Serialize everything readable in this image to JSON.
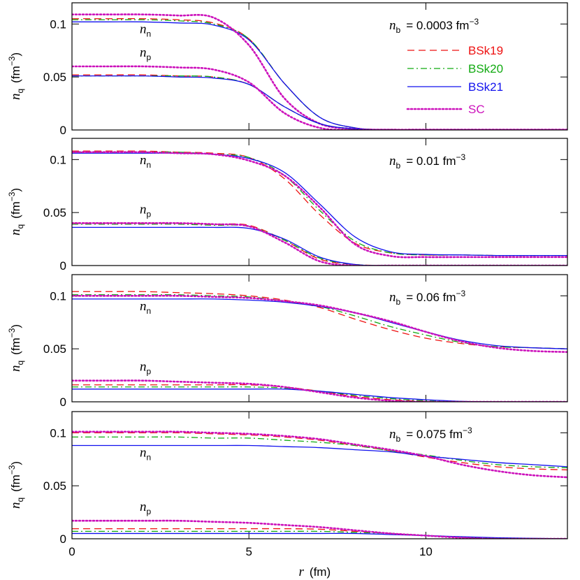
{
  "chart_data": [
    {
      "type": "line",
      "title": {
        "symbol": "n",
        "sub": "b",
        "text": "= 0.0003  fm",
        "sup": "−3"
      },
      "ylabel": {
        "symbol": "n",
        "sub": "q",
        "text": "(fm",
        "sup": "−3",
        "end": ")"
      },
      "xlim": [
        0,
        14
      ],
      "ylim": [
        0,
        0.12
      ],
      "yticks": [
        0,
        0.05,
        0.1
      ],
      "legend": "upper right",
      "x": [
        0,
        1,
        2,
        3,
        4,
        5,
        6,
        7,
        8,
        9,
        10,
        11,
        12,
        13,
        14
      ],
      "groups": [
        {
          "label": {
            "symbol": "n",
            "sub": "n"
          },
          "series": [
            {
              "name": "BSk19",
              "color": "#ee1111",
              "dash": "dashed",
              "values": [
                0.105,
                0.105,
                0.105,
                0.104,
                0.101,
                0.086,
                0.044,
                0.012,
                0.002,
                0.0004,
                0.0003,
                0.0003,
                0.0003,
                0.0003,
                0.0003
              ]
            },
            {
              "name": "BSk20",
              "color": "#11aa11",
              "dash": "dashdot",
              "values": [
                0.104,
                0.104,
                0.104,
                0.103,
                0.1,
                0.086,
                0.044,
                0.012,
                0.002,
                0.0004,
                0.0003,
                0.0003,
                0.0003,
                0.0003,
                0.0003
              ]
            },
            {
              "name": "BSk21",
              "color": "#1111ee",
              "dash": "solid",
              "values": [
                0.102,
                0.102,
                0.102,
                0.101,
                0.099,
                0.085,
                0.044,
                0.012,
                0.002,
                0.0004,
                0.0003,
                0.0003,
                0.0003,
                0.0003,
                0.0003
              ]
            },
            {
              "name": "SC",
              "color": "#cc11bb",
              "dash": "dotted",
              "values": [
                0.109,
                0.109,
                0.109,
                0.108,
                0.106,
                0.08,
                0.03,
                0.006,
                0.001,
                0.0003,
                0.0003,
                0.0003,
                0.0003,
                0.0003,
                0.0003
              ]
            }
          ]
        },
        {
          "label": {
            "symbol": "n",
            "sub": "p"
          },
          "series": [
            {
              "color": "#ee1111",
              "dash": "dashed",
              "values": [
                0.052,
                0.052,
                0.052,
                0.051,
                0.05,
                0.043,
                0.022,
                0.006,
                0.001,
                0,
                0,
                0,
                0,
                0,
                0
              ]
            },
            {
              "color": "#11aa11",
              "dash": "dashdot",
              "values": [
                0.051,
                0.051,
                0.051,
                0.051,
                0.05,
                0.043,
                0.022,
                0.006,
                0.001,
                0,
                0,
                0,
                0,
                0,
                0
              ]
            },
            {
              "color": "#1111ee",
              "dash": "solid",
              "values": [
                0.051,
                0.051,
                0.051,
                0.05,
                0.049,
                0.043,
                0.022,
                0.006,
                0.001,
                0,
                0,
                0,
                0,
                0,
                0
              ]
            },
            {
              "color": "#cc11bb",
              "dash": "dotted",
              "values": [
                0.06,
                0.06,
                0.06,
                0.059,
                0.057,
                0.045,
                0.016,
                0.002,
                0,
                0,
                0,
                0,
                0,
                0,
                0
              ]
            }
          ]
        }
      ]
    },
    {
      "type": "line",
      "title": {
        "symbol": "n",
        "sub": "b",
        "text": "= 0.01  fm",
        "sup": "−3"
      },
      "ylabel": {
        "symbol": "n",
        "sub": "q",
        "text": "(fm",
        "sup": "−3",
        "end": ")"
      },
      "xlim": [
        0,
        14
      ],
      "ylim": [
        0,
        0.12
      ],
      "yticks": [
        0,
        0.05,
        0.1
      ],
      "x": [
        0,
        1,
        2,
        3,
        4,
        5,
        6,
        7,
        8,
        9,
        10,
        11,
        12,
        13,
        14
      ],
      "groups": [
        {
          "label": {
            "symbol": "n",
            "sub": "n"
          },
          "series": [
            {
              "color": "#ee1111",
              "dash": "dashed",
              "values": [
                0.108,
                0.108,
                0.108,
                0.107,
                0.106,
                0.102,
                0.082,
                0.048,
                0.021,
                0.012,
                0.01,
                0.01,
                0.0095,
                0.0095,
                0.0095
              ]
            },
            {
              "color": "#11aa11",
              "dash": "dashdot",
              "values": [
                0.107,
                0.107,
                0.107,
                0.107,
                0.105,
                0.102,
                0.085,
                0.052,
                0.023,
                0.012,
                0.01,
                0.01,
                0.0095,
                0.0095,
                0.0095
              ]
            },
            {
              "color": "#1111ee",
              "dash": "solid",
              "values": [
                0.106,
                0.106,
                0.106,
                0.106,
                0.105,
                0.101,
                0.088,
                0.058,
                0.027,
                0.013,
                0.0105,
                0.01,
                0.0095,
                0.0095,
                0.0095
              ]
            },
            {
              "color": "#cc11bb",
              "dash": "dotted",
              "values": [
                0.107,
                0.107,
                0.107,
                0.106,
                0.105,
                0.099,
                0.085,
                0.055,
                0.02,
                0.009,
                0.008,
                0.008,
                0.008,
                0.008,
                0.008
              ]
            }
          ]
        },
        {
          "label": {
            "symbol": "n",
            "sub": "p"
          },
          "series": [
            {
              "color": "#ee1111",
              "dash": "dashed",
              "values": [
                0.04,
                0.04,
                0.04,
                0.04,
                0.039,
                0.038,
                0.024,
                0.006,
                0.001,
                0,
                0,
                0,
                0,
                0,
                0
              ]
            },
            {
              "color": "#11aa11",
              "dash": "dashdot",
              "values": [
                0.039,
                0.039,
                0.039,
                0.039,
                0.038,
                0.037,
                0.024,
                0.007,
                0.001,
                0,
                0,
                0,
                0,
                0,
                0
              ]
            },
            {
              "color": "#1111ee",
              "dash": "solid",
              "values": [
                0.036,
                0.036,
                0.036,
                0.036,
                0.036,
                0.035,
                0.025,
                0.008,
                0.001,
                0,
                0,
                0,
                0,
                0,
                0
              ]
            },
            {
              "color": "#cc11bb",
              "dash": "dotted",
              "values": [
                0.04,
                0.04,
                0.04,
                0.04,
                0.039,
                0.037,
                0.022,
                0.004,
                0,
                0,
                0,
                0,
                0,
                0,
                0
              ]
            }
          ]
        }
      ]
    },
    {
      "type": "line",
      "title": {
        "symbol": "n",
        "sub": "b",
        "text": "= 0.06  fm",
        "sup": "−3"
      },
      "ylabel": {
        "symbol": "n",
        "sub": "q",
        "text": "(fm",
        "sup": "−3",
        "end": ")"
      },
      "xlim": [
        0,
        14
      ],
      "ylim": [
        0,
        0.12
      ],
      "yticks": [
        0,
        0.05,
        0.1
      ],
      "x": [
        0,
        1,
        2,
        3,
        4,
        5,
        6,
        7,
        8,
        9,
        10,
        11,
        12,
        13,
        14
      ],
      "groups": [
        {
          "label": {
            "symbol": "n",
            "sub": "n"
          },
          "series": [
            {
              "color": "#ee1111",
              "dash": "dashed",
              "values": [
                0.104,
                0.104,
                0.104,
                0.103,
                0.102,
                0.1,
                0.096,
                0.089,
                0.078,
                0.068,
                0.06,
                0.055,
                0.052,
                0.051,
                0.05
              ]
            },
            {
              "color": "#11aa11",
              "dash": "dashdot",
              "values": [
                0.101,
                0.101,
                0.101,
                0.101,
                0.1,
                0.099,
                0.095,
                0.09,
                0.081,
                0.071,
                0.063,
                0.056,
                0.052,
                0.051,
                0.05
              ]
            },
            {
              "color": "#1111ee",
              "dash": "solid",
              "values": [
                0.097,
                0.097,
                0.097,
                0.097,
                0.097,
                0.096,
                0.094,
                0.09,
                0.084,
                0.075,
                0.066,
                0.058,
                0.053,
                0.051,
                0.05
              ]
            },
            {
              "color": "#cc11bb",
              "dash": "dotted",
              "values": [
                0.1,
                0.1,
                0.1,
                0.1,
                0.099,
                0.098,
                0.095,
                0.091,
                0.084,
                0.076,
                0.066,
                0.057,
                0.051,
                0.048,
                0.047
              ]
            }
          ]
        },
        {
          "label": {
            "symbol": "n",
            "sub": "p"
          },
          "series": [
            {
              "color": "#ee1111",
              "dash": "dashed",
              "values": [
                0.016,
                0.016,
                0.016,
                0.016,
                0.016,
                0.016,
                0.014,
                0.01,
                0.005,
                0.002,
                0.0005,
                0,
                0,
                0,
                0
              ]
            },
            {
              "color": "#11aa11",
              "dash": "dashdot",
              "values": [
                0.014,
                0.014,
                0.014,
                0.014,
                0.014,
                0.014,
                0.013,
                0.01,
                0.006,
                0.003,
                0.001,
                0,
                0,
                0,
                0
              ]
            },
            {
              "color": "#1111ee",
              "dash": "solid",
              "values": [
                0.012,
                0.012,
                0.012,
                0.012,
                0.012,
                0.012,
                0.012,
                0.01,
                0.007,
                0.004,
                0.002,
                0.0005,
                0,
                0,
                0
              ]
            },
            {
              "color": "#cc11bb",
              "dash": "dotted",
              "values": [
                0.02,
                0.02,
                0.02,
                0.019,
                0.018,
                0.017,
                0.014,
                0.009,
                0.004,
                0.001,
                0,
                0,
                0,
                0,
                0
              ]
            }
          ]
        }
      ]
    },
    {
      "type": "line",
      "title": {
        "symbol": "n",
        "sub": "b",
        "text": "= 0.075  fm",
        "sup": "−3"
      },
      "ylabel": {
        "symbol": "n",
        "sub": "q",
        "text": "(fm",
        "sup": "−3",
        "end": ")"
      },
      "xlabel": {
        "symbol": "r",
        "text": "(fm)"
      },
      "xlim": [
        0,
        14
      ],
      "xticks": [
        0,
        5,
        10
      ],
      "ylim": [
        0,
        0.12
      ],
      "yticks": [
        0,
        0.05,
        0.1
      ],
      "x": [
        0,
        1,
        2,
        3,
        4,
        5,
        6,
        7,
        8,
        9,
        10,
        11,
        12,
        13,
        14
      ],
      "groups": [
        {
          "label": {
            "symbol": "n",
            "sub": "n"
          },
          "series": [
            {
              "color": "#ee1111",
              "dash": "dashed",
              "values": [
                0.1,
                0.1,
                0.1,
                0.1,
                0.099,
                0.098,
                0.096,
                0.093,
                0.088,
                0.083,
                0.077,
                0.072,
                0.068,
                0.066,
                0.065
              ]
            },
            {
              "color": "#11aa11",
              "dash": "dashdot",
              "values": [
                0.096,
                0.096,
                0.096,
                0.096,
                0.095,
                0.095,
                0.093,
                0.091,
                0.088,
                0.083,
                0.079,
                0.074,
                0.07,
                0.068,
                0.067
              ]
            },
            {
              "color": "#1111ee",
              "dash": "solid",
              "values": [
                0.088,
                0.088,
                0.088,
                0.088,
                0.088,
                0.088,
                0.087,
                0.086,
                0.084,
                0.082,
                0.078,
                0.075,
                0.072,
                0.07,
                0.068
              ]
            },
            {
              "color": "#cc11bb",
              "dash": "dotted",
              "values": [
                0.101,
                0.101,
                0.101,
                0.101,
                0.1,
                0.099,
                0.097,
                0.094,
                0.089,
                0.084,
                0.078,
                0.07,
                0.064,
                0.06,
                0.058
              ]
            }
          ]
        },
        {
          "label": {
            "symbol": "n",
            "sub": "p"
          },
          "series": [
            {
              "color": "#ee1111",
              "dash": "dashed",
              "values": [
                0.0095,
                0.0095,
                0.0095,
                0.0095,
                0.0095,
                0.0095,
                0.0095,
                0.009,
                0.007,
                0.005,
                0.003,
                0.0015,
                0.0005,
                0,
                0
              ]
            },
            {
              "color": "#11aa11",
              "dash": "dashdot",
              "values": [
                0.007,
                0.007,
                0.007,
                0.007,
                0.007,
                0.007,
                0.007,
                0.007,
                0.006,
                0.005,
                0.003,
                0.0015,
                0.0005,
                0,
                0
              ]
            },
            {
              "color": "#1111ee",
              "dash": "solid",
              "values": [
                0.005,
                0.005,
                0.005,
                0.005,
                0.005,
                0.005,
                0.005,
                0.005,
                0.005,
                0.004,
                0.003,
                0.002,
                0.001,
                0.0005,
                0
              ]
            },
            {
              "color": "#cc11bb",
              "dash": "dotted",
              "values": [
                0.017,
                0.017,
                0.017,
                0.017,
                0.016,
                0.015,
                0.013,
                0.011,
                0.008,
                0.005,
                0.003,
                0.001,
                0,
                0,
                0
              ]
            }
          ]
        }
      ]
    }
  ]
}
